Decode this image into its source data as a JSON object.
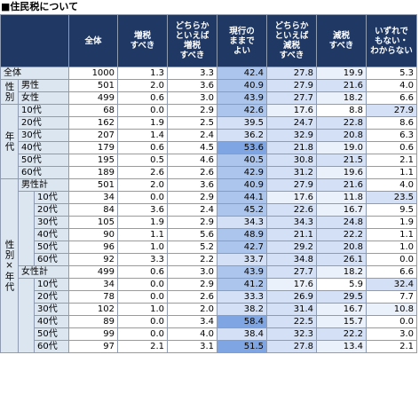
{
  "title": "■住民税について",
  "table": {
    "columns": [
      "全体",
      "増税\nすべき",
      "どちらか\nといえば\n増税\nすべき",
      "現行の\nままで\nよい",
      "どちらか\nといえば\n減税\nすべき",
      "減税\nすべき",
      "いずれで\nもない・\nわからない"
    ],
    "total": {
      "label": "全体",
      "values": [
        "1000",
        "1.3",
        "3.3",
        "42.4",
        "27.8",
        "19.9",
        "5.3"
      ]
    },
    "groups": [
      {
        "label": "性別",
        "rows": [
          {
            "label": "男性",
            "values": [
              "501",
              "2.0",
              "3.6",
              "40.9",
              "27.9",
              "21.6",
              "4.0"
            ]
          },
          {
            "label": "女性",
            "values": [
              "499",
              "0.6",
              "3.0",
              "43.9",
              "27.7",
              "18.2",
              "6.6"
            ]
          }
        ]
      },
      {
        "label": "年代",
        "rows": [
          {
            "label": "10代",
            "values": [
              "68",
              "0.0",
              "2.9",
              "42.6",
              "17.6",
              "8.8",
              "27.9"
            ]
          },
          {
            "label": "20代",
            "values": [
              "162",
              "1.9",
              "2.5",
              "39.5",
              "24.7",
              "22.8",
              "8.6"
            ]
          },
          {
            "label": "30代",
            "values": [
              "207",
              "1.4",
              "2.4",
              "36.2",
              "32.9",
              "20.8",
              "6.3"
            ]
          },
          {
            "label": "40代",
            "values": [
              "179",
              "0.6",
              "4.5",
              "53.6",
              "21.8",
              "19.0",
              "0.6"
            ]
          },
          {
            "label": "50代",
            "values": [
              "195",
              "0.5",
              "4.6",
              "40.5",
              "30.8",
              "21.5",
              "2.1"
            ]
          },
          {
            "label": "60代",
            "values": [
              "189",
              "2.6",
              "2.6",
              "42.9",
              "31.2",
              "19.6",
              "1.1"
            ]
          }
        ]
      },
      {
        "label": "性別×年代",
        "subgroups": [
          {
            "label": "男性計",
            "values": [
              "501",
              "2.0",
              "3.6",
              "40.9",
              "27.9",
              "21.6",
              "4.0"
            ],
            "rows": [
              {
                "label": "10代",
                "values": [
                  "34",
                  "0.0",
                  "2.9",
                  "44.1",
                  "17.6",
                  "11.8",
                  "23.5"
                ]
              },
              {
                "label": "20代",
                "values": [
                  "84",
                  "3.6",
                  "2.4",
                  "45.2",
                  "22.6",
                  "16.7",
                  "9.5"
                ]
              },
              {
                "label": "30代",
                "values": [
                  "105",
                  "1.9",
                  "2.9",
                  "34.3",
                  "34.3",
                  "24.8",
                  "1.9"
                ]
              },
              {
                "label": "40代",
                "values": [
                  "90",
                  "1.1",
                  "5.6",
                  "48.9",
                  "21.1",
                  "22.2",
                  "1.1"
                ]
              },
              {
                "label": "50代",
                "values": [
                  "96",
                  "1.0",
                  "5.2",
                  "42.7",
                  "29.2",
                  "20.8",
                  "1.0"
                ]
              },
              {
                "label": "60代",
                "values": [
                  "92",
                  "3.3",
                  "2.2",
                  "33.7",
                  "34.8",
                  "26.1",
                  "0.0"
                ]
              }
            ]
          },
          {
            "label": "女性計",
            "values": [
              "499",
              "0.6",
              "3.0",
              "43.9",
              "27.7",
              "18.2",
              "6.6"
            ],
            "rows": [
              {
                "label": "10代",
                "values": [
                  "34",
                  "0.0",
                  "2.9",
                  "41.2",
                  "17.6",
                  "5.9",
                  "32.4"
                ]
              },
              {
                "label": "20代",
                "values": [
                  "78",
                  "0.0",
                  "2.6",
                  "33.3",
                  "26.9",
                  "29.5",
                  "7.7"
                ]
              },
              {
                "label": "30代",
                "values": [
                  "102",
                  "1.0",
                  "2.0",
                  "38.2",
                  "31.4",
                  "16.7",
                  "10.8"
                ]
              },
              {
                "label": "40代",
                "values": [
                  "89",
                  "0.0",
                  "3.4",
                  "58.4",
                  "22.5",
                  "15.7",
                  "0.0"
                ]
              },
              {
                "label": "50代",
                "values": [
                  "99",
                  "0.0",
                  "4.0",
                  "38.4",
                  "32.3",
                  "22.2",
                  "3.0"
                ]
              },
              {
                "label": "60代",
                "values": [
                  "97",
                  "2.1",
                  "3.1",
                  "51.5",
                  "27.8",
                  "13.4",
                  "2.1"
                ]
              }
            ]
          }
        ]
      }
    ]
  }
}
